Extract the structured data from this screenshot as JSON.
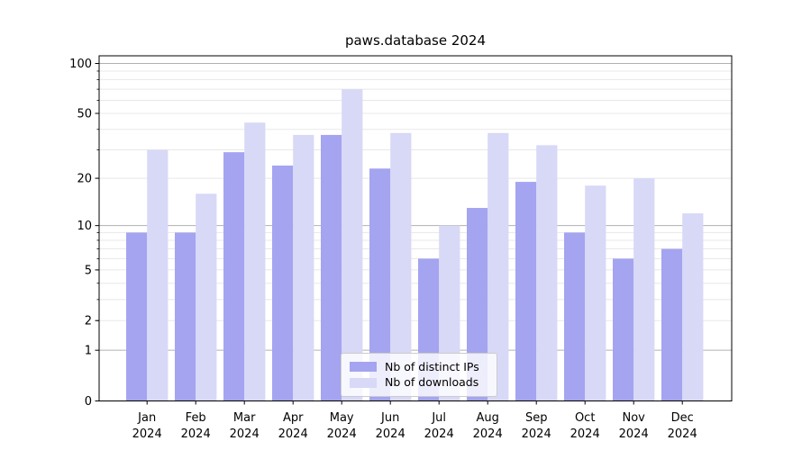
{
  "title": "paws.database 2024",
  "chart_data": {
    "type": "bar",
    "title": "paws.database 2024",
    "categories": [
      "Jan 2024",
      "Feb 2024",
      "Mar 2024",
      "Apr 2024",
      "May 2024",
      "Jun 2024",
      "Jul 2024",
      "Aug 2024",
      "Sep 2024",
      "Oct 2024",
      "Nov 2024",
      "Dec 2024"
    ],
    "series": [
      {
        "name": "Nb of distinct IPs",
        "color": "#a4a4f0",
        "values": [
          9,
          9,
          29,
          24,
          37,
          23,
          6,
          13,
          19,
          9,
          6,
          7
        ]
      },
      {
        "name": "Nb of downloads",
        "color": "#d8d8f7",
        "values": [
          30,
          16,
          44,
          37,
          70,
          38,
          10,
          38,
          32,
          18,
          20,
          12
        ]
      }
    ],
    "xlabel": "",
    "ylabel": "",
    "yscale": "log1p",
    "ylim": [
      0,
      111
    ],
    "yticks": [
      100,
      50,
      20,
      10,
      5,
      2,
      1,
      0
    ],
    "major_gridlines": [
      100,
      10,
      1
    ],
    "minor_gridlines": [
      90,
      80,
      70,
      60,
      50,
      40,
      30,
      20,
      9,
      8,
      7,
      6,
      5,
      4,
      3,
      2
    ],
    "grid": "horizontal",
    "legend_position": "lower center"
  },
  "colors": {
    "grid_major": "#b0b0b0",
    "grid_minor": "#e8e8e8",
    "axis": "#000000",
    "tick_text": "#000000",
    "legend_border": "#cccccc",
    "legend_background": "rgba(255,255,255,0.8)"
  }
}
